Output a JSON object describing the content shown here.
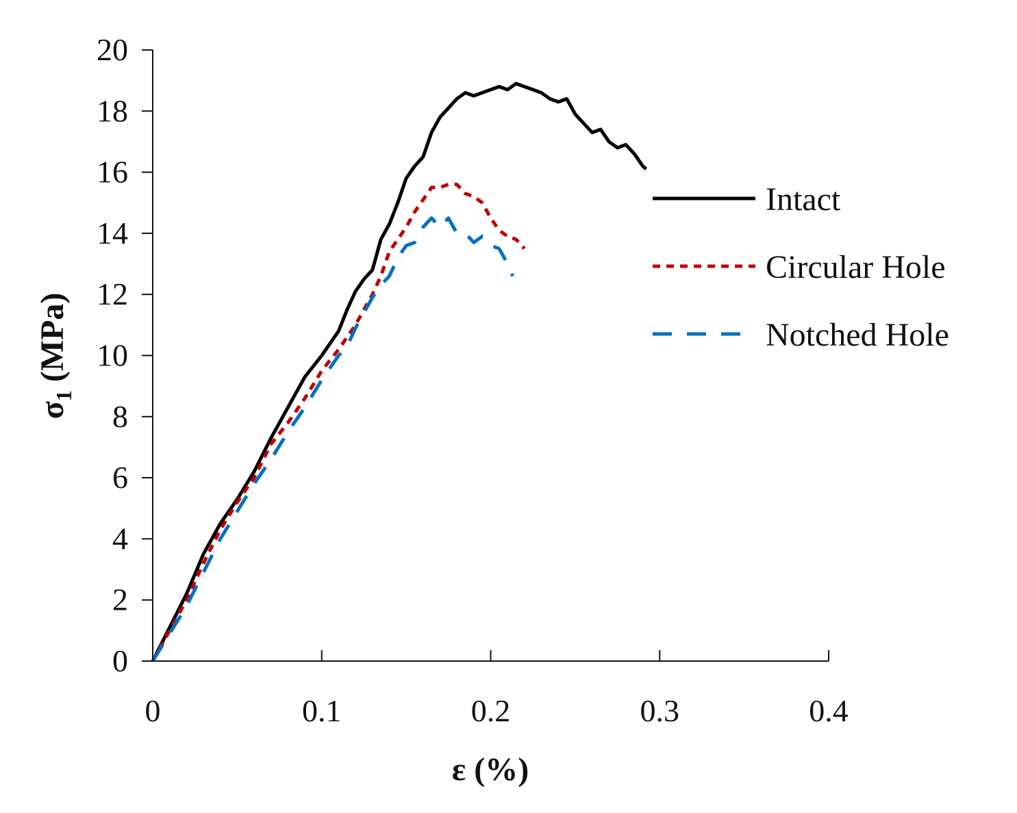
{
  "chart_data": {
    "type": "line",
    "title": "",
    "xlabel": "ε (%)",
    "ylabel_main": "σ",
    "ylabel_sub": "1",
    "ylabel_unit": " (MPa)",
    "xlim": [
      0,
      0.4
    ],
    "ylim": [
      0,
      20
    ],
    "xticks": [
      0,
      0.1,
      0.2,
      0.3,
      0.4
    ],
    "xtick_labels": [
      "0",
      "0.1",
      "0.2",
      "0.3",
      "0.4"
    ],
    "yticks": [
      0,
      2,
      4,
      6,
      8,
      10,
      12,
      14,
      16,
      18,
      20
    ],
    "ytick_labels": [
      "0",
      "2",
      "4",
      "6",
      "8",
      "10",
      "12",
      "14",
      "16",
      "18",
      "20"
    ],
    "grid": false,
    "legend_position": "right",
    "series": [
      {
        "name": "Intact",
        "color": "#000000",
        "dash": "solid",
        "x": [
          0,
          0.01,
          0.02,
          0.03,
          0.04,
          0.05,
          0.06,
          0.07,
          0.08,
          0.09,
          0.1,
          0.11,
          0.115,
          0.12,
          0.125,
          0.13,
          0.135,
          0.14,
          0.145,
          0.15,
          0.155,
          0.16,
          0.165,
          0.17,
          0.175,
          0.18,
          0.185,
          0.19,
          0.195,
          0.2,
          0.205,
          0.21,
          0.215,
          0.22,
          0.225,
          0.23,
          0.235,
          0.24,
          0.245,
          0.25,
          0.255,
          0.26,
          0.265,
          0.27,
          0.275,
          0.28,
          0.285,
          0.29,
          0.292
        ],
        "y": [
          0,
          1.1,
          2.2,
          3.5,
          4.5,
          5.3,
          6.2,
          7.3,
          8.3,
          9.3,
          10.0,
          10.8,
          11.5,
          12.1,
          12.5,
          12.8,
          13.8,
          14.3,
          15.0,
          15.8,
          16.2,
          16.5,
          17.3,
          17.8,
          18.1,
          18.4,
          18.6,
          18.5,
          18.6,
          18.7,
          18.8,
          18.7,
          18.9,
          18.8,
          18.7,
          18.6,
          18.4,
          18.3,
          18.4,
          17.9,
          17.6,
          17.3,
          17.4,
          17.0,
          16.8,
          16.9,
          16.6,
          16.2,
          16.1
        ]
      },
      {
        "name": "Circular Hole",
        "color": "#c00000",
        "dash": "short",
        "x": [
          0,
          0.01,
          0.02,
          0.03,
          0.04,
          0.05,
          0.06,
          0.07,
          0.08,
          0.09,
          0.1,
          0.11,
          0.12,
          0.125,
          0.13,
          0.135,
          0.14,
          0.145,
          0.15,
          0.155,
          0.16,
          0.165,
          0.17,
          0.175,
          0.18,
          0.185,
          0.19,
          0.195,
          0.2,
          0.205,
          0.21,
          0.215,
          0.22
        ],
        "y": [
          0,
          1.0,
          2.0,
          3.2,
          4.3,
          5.2,
          6.0,
          7.1,
          7.8,
          8.6,
          9.5,
          10.2,
          11.0,
          11.5,
          12.0,
          12.6,
          13.4,
          13.8,
          14.2,
          14.7,
          15.1,
          15.5,
          15.5,
          15.6,
          15.6,
          15.3,
          15.2,
          15.0,
          14.5,
          14.1,
          13.9,
          13.8,
          13.5
        ]
      },
      {
        "name": "Notched Hole",
        "color": "#0070c0",
        "dash": "long",
        "x": [
          0,
          0.01,
          0.02,
          0.03,
          0.04,
          0.05,
          0.06,
          0.07,
          0.08,
          0.09,
          0.1,
          0.11,
          0.115,
          0.12,
          0.125,
          0.13,
          0.135,
          0.14,
          0.145,
          0.15,
          0.155,
          0.16,
          0.165,
          0.17,
          0.175,
          0.18,
          0.185,
          0.19,
          0.195,
          0.2,
          0.205,
          0.21,
          0.213
        ],
        "y": [
          0,
          0.9,
          1.8,
          2.9,
          4.0,
          4.9,
          5.8,
          6.6,
          7.5,
          8.3,
          9.2,
          10.0,
          10.3,
          10.9,
          11.4,
          11.9,
          12.3,
          12.6,
          13.2,
          13.6,
          13.7,
          14.2,
          14.5,
          14.2,
          14.5,
          14.0,
          14.0,
          13.7,
          13.9,
          13.6,
          13.5,
          13.0,
          12.6
        ]
      }
    ]
  }
}
